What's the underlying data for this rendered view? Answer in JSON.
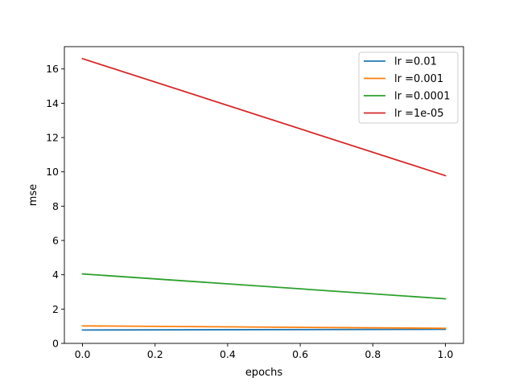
{
  "chart_data": {
    "type": "line",
    "title": "",
    "xlabel": "epochs",
    "ylabel": "mse",
    "xlim": [
      -0.05,
      1.05
    ],
    "ylim": [
      0,
      17.3
    ],
    "xticks": [
      "0.0",
      "0.2",
      "0.4",
      "0.6",
      "0.8",
      "1.0"
    ],
    "yticks": [
      "0",
      "2",
      "4",
      "6",
      "8",
      "10",
      "12",
      "14",
      "16"
    ],
    "grid": false,
    "legend_position": "top-right",
    "x": [
      0,
      1
    ],
    "series": [
      {
        "name": "lr =0.01",
        "color": "#1f77b4",
        "values": [
          0.78,
          0.82
        ]
      },
      {
        "name": "lr =0.001",
        "color": "#ff7f0e",
        "values": [
          1.02,
          0.88
        ]
      },
      {
        "name": "lr =0.0001",
        "color": "#2ca02c",
        "values": [
          4.05,
          2.6
        ]
      },
      {
        "name": "lr =1e-05",
        "color": "#d62728",
        "values": [
          16.6,
          9.78
        ]
      }
    ]
  }
}
